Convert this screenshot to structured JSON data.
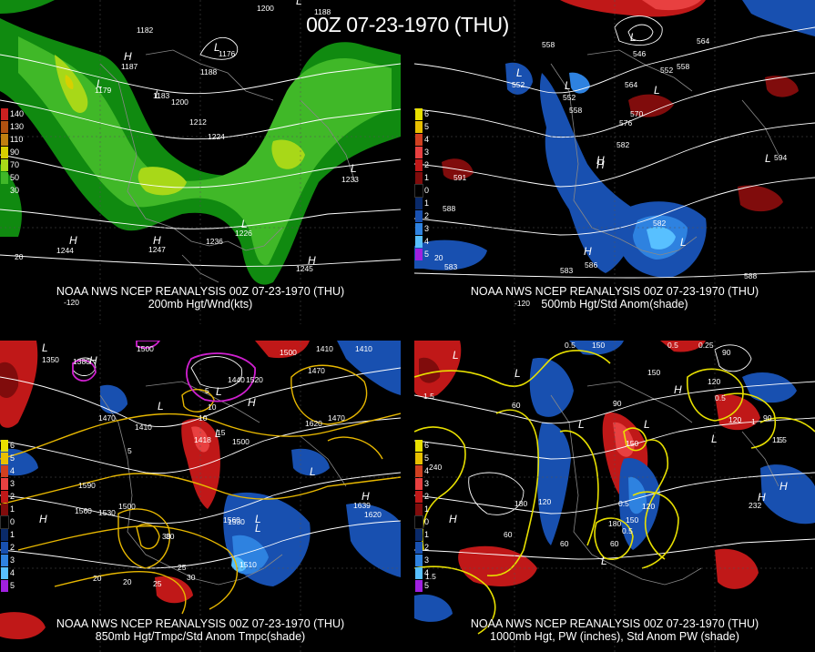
{
  "title": "00Z 07-23-1970 (THU)",
  "panels": [
    {
      "caption1": "NOAA NWS NCEP REANALYSIS 00Z 07-23-1970 (THU)",
      "caption2": "200mb Hgt/Wnd(kts)",
      "legend": [
        {
          "label": "140",
          "color": "#cc2020"
        },
        {
          "label": "130",
          "color": "#b05010"
        },
        {
          "label": "110",
          "color": "#c08010"
        },
        {
          "label": "90",
          "color": "#d8d000"
        },
        {
          "label": "70",
          "color": "#a8d818"
        },
        {
          "label": "50",
          "color": "#40b828"
        },
        {
          "label": "30",
          "color": "#108a10"
        }
      ],
      "labels": [
        "1200",
        "1188",
        "1182",
        "1187",
        "1179",
        "1183",
        "1176",
        "1188",
        "1200",
        "1212",
        "1224",
        "1233",
        "1236",
        "1226",
        "1244",
        "1247",
        "1245",
        "-120",
        "20"
      ],
      "marks": [
        "L",
        "H",
        "L",
        "L",
        "L",
        "L",
        "L",
        "H",
        "H",
        "H"
      ]
    },
    {
      "caption1": "NOAA NWS NCEP REANALYSIS 00Z 07-23-1970 (THU)",
      "caption2": "500mb Hgt/Std Anom(shade)",
      "legend": [
        {
          "label": "6",
          "color": "#e8e000"
        },
        {
          "label": "5",
          "color": "#e8c000"
        },
        {
          "label": "4",
          "color": "#d04020"
        },
        {
          "label": "3",
          "color": "#e84040"
        },
        {
          "label": "2",
          "color": "#c01818"
        },
        {
          "label": "1",
          "color": "#800c0c"
        },
        {
          "label": "0",
          "color": "#000000"
        },
        {
          "label": "1",
          "color": "#0a2a6a"
        },
        {
          "label": "2",
          "color": "#1850b0"
        },
        {
          "label": "3",
          "color": "#2e82e0"
        },
        {
          "label": "4",
          "color": "#58c0ff"
        },
        {
          "label": "5",
          "color": "#a020e0"
        }
      ],
      "labels": [
        "558",
        "546",
        "564",
        "558",
        "552",
        "552",
        "552",
        "558",
        "570",
        "576",
        "564",
        "582",
        "594",
        "591",
        "588",
        "582",
        "583",
        "586",
        "583",
        "588",
        "-120",
        "20"
      ],
      "marks": [
        "L",
        "L",
        "L",
        "L",
        "H",
        "L",
        "L",
        "H",
        "H"
      ]
    },
    {
      "caption1": "NOAA NWS NCEP REANALYSIS 00Z 07-23-1970 (THU)",
      "caption2": "850mb Hgt/Tmpc/Std Anom Tmpc(shade)",
      "legend": [
        {
          "label": "6",
          "color": "#e8e000"
        },
        {
          "label": "5",
          "color": "#e8c000"
        },
        {
          "label": "4",
          "color": "#d04020"
        },
        {
          "label": "3",
          "color": "#e84040"
        },
        {
          "label": "2",
          "color": "#c01818"
        },
        {
          "label": "1",
          "color": "#800c0c"
        },
        {
          "label": "0",
          "color": "#000000"
        },
        {
          "label": "1",
          "color": "#0a2a6a"
        },
        {
          "label": "2",
          "color": "#1850b0"
        },
        {
          "label": "3",
          "color": "#2e82e0"
        },
        {
          "label": "4",
          "color": "#58c0ff"
        },
        {
          "label": "5",
          "color": "#a020e0"
        }
      ],
      "labels": [
        "1500",
        "1350",
        "1380",
        "1500",
        "1410",
        "1470",
        "1440",
        "1520",
        "1410",
        "1470",
        "1410",
        "1418",
        "1500",
        "1470",
        "1620",
        "1590",
        "1530",
        "1560",
        "1500",
        "1530",
        "1560",
        "1620",
        "1639",
        "1510",
        "10",
        "15",
        "10",
        "5",
        "5",
        "20",
        "25",
        "30",
        "30",
        "20",
        "25",
        "30"
      ],
      "marks": [
        "L",
        "H",
        "L",
        "H",
        "L",
        "H",
        "L",
        "L",
        "L",
        "H",
        "L"
      ]
    },
    {
      "caption1": "NOAA NWS NCEP REANALYSIS 00Z 07-23-1970 (THU)",
      "caption2": "1000mb Hgt, PW (inches), Std Anom PW (shade)",
      "legend": [
        {
          "label": "6",
          "color": "#e8e000"
        },
        {
          "label": "5",
          "color": "#e8c000"
        },
        {
          "label": "4",
          "color": "#d04020"
        },
        {
          "label": "3",
          "color": "#e84040"
        },
        {
          "label": "2",
          "color": "#c01818"
        },
        {
          "label": "1",
          "color": "#800c0c"
        },
        {
          "label": "0",
          "color": "#000000"
        },
        {
          "label": "1",
          "color": "#0a2a6a"
        },
        {
          "label": "2",
          "color": "#1850b0"
        },
        {
          "label": "3",
          "color": "#2e82e0"
        },
        {
          "label": "4",
          "color": "#58c0ff"
        },
        {
          "label": "5",
          "color": "#a020e0"
        }
      ],
      "labels": [
        "0.5",
        "150",
        "0.5",
        "0.25",
        "90",
        "150",
        "120",
        "1.5",
        "60",
        "0.5",
        "90",
        "1",
        "1.5",
        "150",
        "120",
        "90",
        "240",
        "1.5",
        "180",
        "120",
        "120",
        "60",
        "150",
        "180",
        "0.5",
        "0.5",
        "60",
        "60",
        "232",
        "1.5"
      ],
      "marks": [
        "L",
        "L",
        "H",
        "L",
        "L",
        "H",
        "L",
        "L",
        "H",
        "H"
      ]
    }
  ]
}
